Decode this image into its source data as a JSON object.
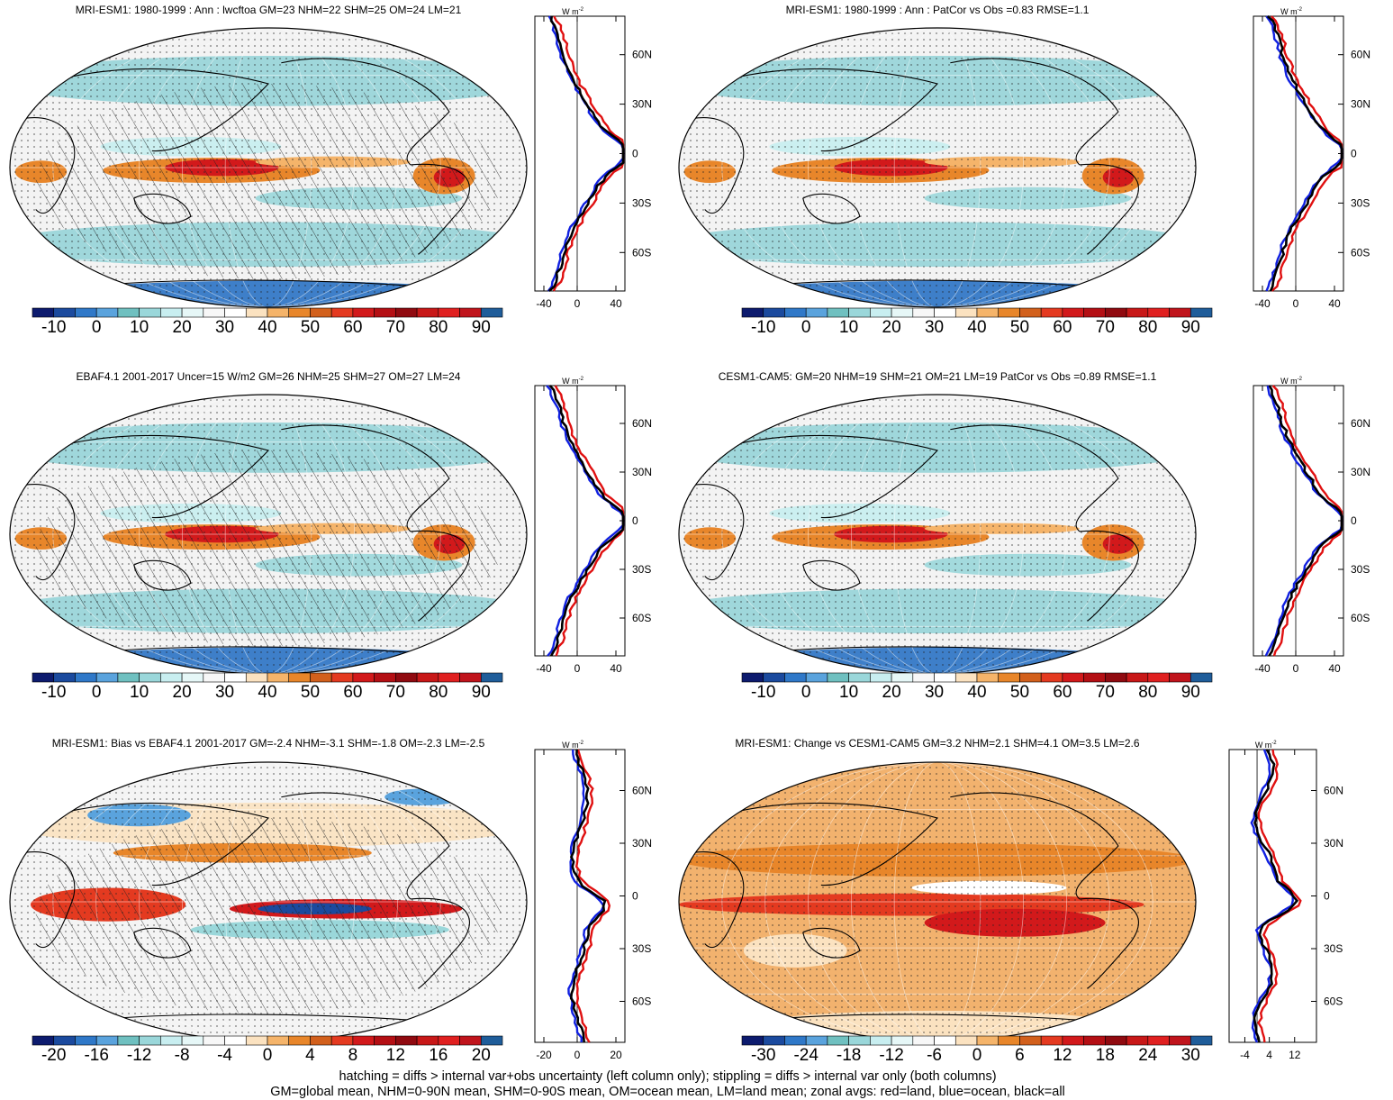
{
  "panels": [
    {
      "id": "p1",
      "title": "MRI-ESM1: 1980-1999 : Ann : lwcftoa GM=23 NHM=22 SHM=25 OM=24 LM=21",
      "scale": "main",
      "hatching": true,
      "zonal_xticks": [
        "-40",
        "0",
        "40"
      ]
    },
    {
      "id": "p2",
      "title": "MRI-ESM1: 1980-1999 : Ann : PatCor vs Obs =0.83 RMSE=1.1",
      "scale": "main",
      "hatching": false,
      "zonal_xticks": [
        "-40",
        "0",
        "40"
      ]
    },
    {
      "id": "p3",
      "title": "EBAF4.1 2001-2017 Uncer=15 W/m2 GM=26 NHM=25 SHM=27 OM=27 LM=24",
      "scale": "main",
      "hatching": true,
      "zonal_xticks": [
        "-40",
        "0",
        "40"
      ]
    },
    {
      "id": "p4",
      "title": "CESM1-CAM5: GM=20 NHM=19 SHM=21 OM=21 LM=19 PatCor vs Obs =0.89 RMSE=1.1",
      "scale": "main",
      "hatching": false,
      "zonal_xticks": [
        "-40",
        "0",
        "40"
      ]
    },
    {
      "id": "p5",
      "title": "MRI-ESM1: Bias vs EBAF4.1 2001-2017 GM=-2.4 NHM=-3.1 SHM=-1.8 OM=-2.3 LM=-2.5",
      "scale": "bias",
      "hatching": true,
      "zonal_xticks": [
        "-20",
        "0",
        "20"
      ]
    },
    {
      "id": "p6",
      "title": "MRI-ESM1: Change vs CESM1-CAM5 GM=3.2 NHM=2.1 SHM=4.1 OM=3.5 LM=2.6",
      "scale": "change",
      "hatching": false,
      "zonal_xticks": [
        "-4",
        "4",
        "12"
      ]
    }
  ],
  "colorbars": {
    "main": {
      "labels": [
        "-10",
        "0",
        "10",
        "20",
        "30",
        "40",
        "50",
        "60",
        "70",
        "80",
        "90"
      ],
      "colors": [
        "#0d1b6e",
        "#1b4a9e",
        "#2f78c8",
        "#5aa3dd",
        "#6fc0c0",
        "#9ad7da",
        "#c8eef0",
        "#e6f7f7",
        "#f7f7f7",
        "#ffffff",
        "#fbe2c0",
        "#f5b46a",
        "#e8862a",
        "#d2601c",
        "#e43a20",
        "#d2191b",
        "#b40f14",
        "#900a10",
        "#c81818",
        "#e02020",
        "#c0141c",
        "#1f5d9a"
      ]
    },
    "bias": {
      "labels": [
        "-20",
        "-16",
        "-12",
        "-8",
        "-4",
        "0",
        "4",
        "8",
        "12",
        "16",
        "20"
      ],
      "colors": [
        "#0d1b6e",
        "#1b4a9e",
        "#2f78c8",
        "#5aa3dd",
        "#6fc0c0",
        "#9ad7da",
        "#c8eef0",
        "#e6f7f7",
        "#f7f7f7",
        "#ffffff",
        "#fbe2c0",
        "#f5b46a",
        "#e8862a",
        "#d2601c",
        "#e43a20",
        "#d2191b",
        "#b40f14",
        "#900a10",
        "#c81818",
        "#e02020",
        "#c0141c",
        "#1f5d9a"
      ]
    },
    "change": {
      "labels": [
        "-30",
        "-24",
        "-18",
        "-12",
        "-6",
        "0",
        "6",
        "12",
        "18",
        "24",
        "30"
      ],
      "colors": [
        "#0d1b6e",
        "#1b4a9e",
        "#2f78c8",
        "#5aa3dd",
        "#6fc0c0",
        "#9ad7da",
        "#c8eef0",
        "#e6f7f7",
        "#f7f7f7",
        "#ffffff",
        "#fbe2c0",
        "#f5b46a",
        "#e8862a",
        "#d2601c",
        "#e43a20",
        "#d2191b",
        "#b40f14",
        "#900a10",
        "#c81818",
        "#e02020",
        "#c0141c",
        "#1f5d9a"
      ]
    }
  },
  "zonal": {
    "unit": "W m",
    "unit_exp": "-2",
    "lat_labels": [
      "60N",
      "30N",
      "0",
      "30S",
      "60S"
    ],
    "line_colors": {
      "land": "#e01010",
      "ocean": "#1020e0",
      "all": "#000000"
    }
  },
  "footer": {
    "line1": "hatching = diffs > internal var+obs uncertainty (left column only); stippling = diffs > internal var only (both columns)",
    "line2": "GM=global mean, NHM=0-90N mean, SHM=0-90S mean, OM=ocean mean, LM=land mean; zonal avgs: red=land, blue=ocean, black=all"
  }
}
